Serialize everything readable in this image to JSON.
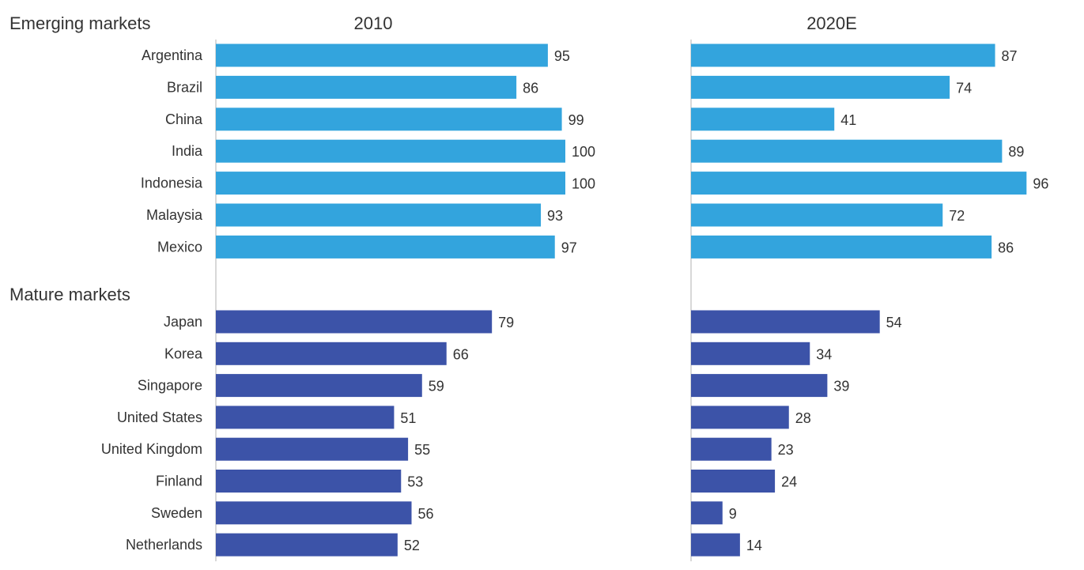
{
  "chart_data": {
    "type": "bar",
    "orientation": "horizontal",
    "panels": [
      "2010",
      "2020E"
    ],
    "groups": [
      {
        "name": "Emerging markets",
        "color": "#33a4dd",
        "categories": [
          "Argentina",
          "Brazil",
          "China",
          "India",
          "Indonesia",
          "Malaysia",
          "Mexico"
        ],
        "values": {
          "2010": [
            95,
            86,
            99,
            100,
            100,
            93,
            97
          ],
          "2020E": [
            87,
            74,
            41,
            89,
            96,
            72,
            86
          ]
        }
      },
      {
        "name": "Mature markets",
        "color": "#3c53a8",
        "categories": [
          "Japan",
          "Korea",
          "Singapore",
          "United States",
          "United Kingdom",
          "Finland",
          "Sweden",
          "Netherlands"
        ],
        "values": {
          "2010": [
            79,
            66,
            59,
            51,
            55,
            53,
            56,
            52
          ],
          "2020E": [
            54,
            34,
            39,
            28,
            23,
            24,
            9,
            14
          ]
        }
      }
    ],
    "xlim": [
      0,
      100
    ],
    "grid": false,
    "legend": "none"
  }
}
